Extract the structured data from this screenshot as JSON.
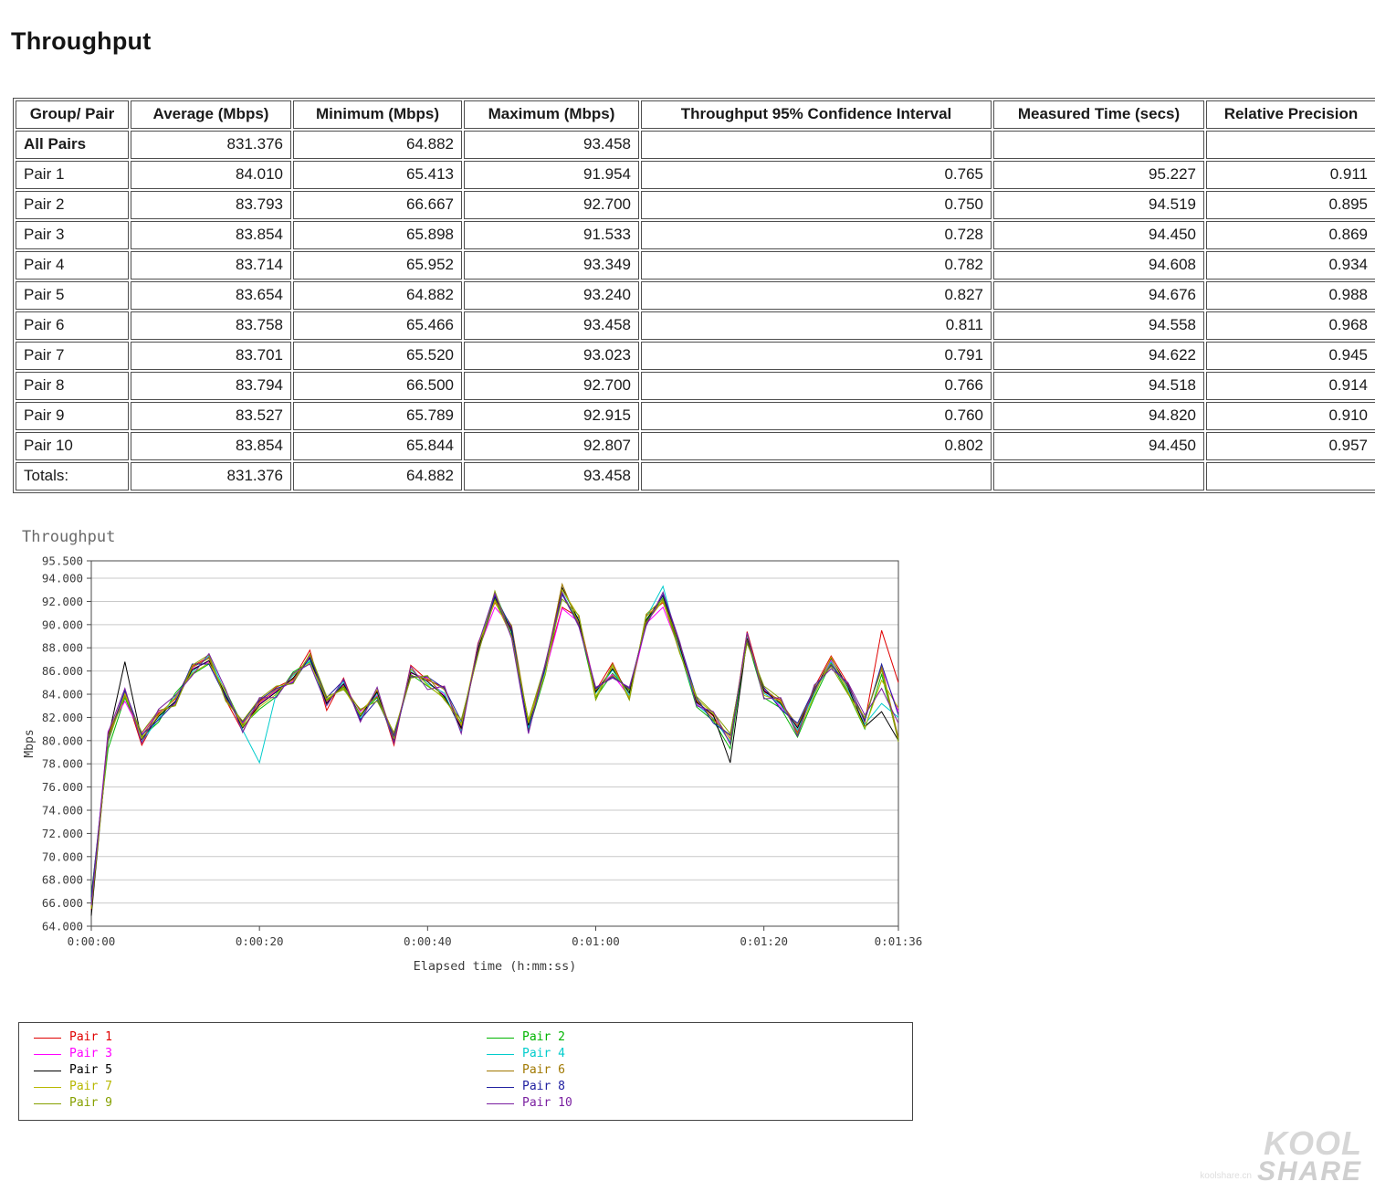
{
  "page": {
    "heading": "Throughput"
  },
  "table": {
    "columns": [
      "Group/ Pair",
      "Average (Mbps)",
      "Minimum (Mbps)",
      "Maximum (Mbps)",
      "Throughput 95% Confidence Interval",
      "Measured Time (secs)",
      "Relative Precision"
    ],
    "rows": [
      {
        "label": "All Pairs",
        "bold": true,
        "values": [
          "831.376",
          "64.882",
          "93.458",
          "",
          "",
          ""
        ]
      },
      {
        "label": "Pair 1",
        "bold": false,
        "values": [
          "84.010",
          "65.413",
          "91.954",
          "0.765",
          "95.227",
          "0.911"
        ]
      },
      {
        "label": "Pair 2",
        "bold": false,
        "values": [
          "83.793",
          "66.667",
          "92.700",
          "0.750",
          "94.519",
          "0.895"
        ]
      },
      {
        "label": "Pair 3",
        "bold": false,
        "values": [
          "83.854",
          "65.898",
          "91.533",
          "0.728",
          "94.450",
          "0.869"
        ]
      },
      {
        "label": "Pair 4",
        "bold": false,
        "values": [
          "83.714",
          "65.952",
          "93.349",
          "0.782",
          "94.608",
          "0.934"
        ]
      },
      {
        "label": "Pair 5",
        "bold": false,
        "values": [
          "83.654",
          "64.882",
          "93.240",
          "0.827",
          "94.676",
          "0.988"
        ]
      },
      {
        "label": "Pair 6",
        "bold": false,
        "values": [
          "83.758",
          "65.466",
          "93.458",
          "0.811",
          "94.558",
          "0.968"
        ]
      },
      {
        "label": "Pair 7",
        "bold": false,
        "values": [
          "83.701",
          "65.520",
          "93.023",
          "0.791",
          "94.622",
          "0.945"
        ]
      },
      {
        "label": "Pair 8",
        "bold": false,
        "values": [
          "83.794",
          "66.500",
          "92.700",
          "0.766",
          "94.518",
          "0.914"
        ]
      },
      {
        "label": "Pair 9",
        "bold": false,
        "values": [
          "83.527",
          "65.789",
          "92.915",
          "0.760",
          "94.820",
          "0.910"
        ]
      },
      {
        "label": "Pair 10",
        "bold": false,
        "values": [
          "83.854",
          "65.844",
          "92.807",
          "0.802",
          "94.450",
          "0.957"
        ]
      },
      {
        "label": "Totals:",
        "bold": false,
        "values": [
          "831.376",
          "64.882",
          "93.458",
          "",
          "",
          ""
        ]
      }
    ]
  },
  "chart_data": {
    "type": "line",
    "title": "Throughput",
    "xlabel": "Elapsed time (h:mm:ss)",
    "ylabel": "Mbps",
    "ylim": [
      64.0,
      95.5
    ],
    "yticks": [
      64,
      66,
      68,
      70,
      72,
      74,
      76,
      78,
      80,
      82,
      84,
      86,
      88,
      90,
      92,
      94,
      95.5
    ],
    "xlim": [
      0,
      96
    ],
    "xticks": [
      {
        "sec": 0,
        "label": "0:00:00"
      },
      {
        "sec": 20,
        "label": "0:00:20"
      },
      {
        "sec": 40,
        "label": "0:00:40"
      },
      {
        "sec": 60,
        "label": "0:01:00"
      },
      {
        "sec": 80,
        "label": "0:01:20"
      },
      {
        "sec": 96,
        "label": "0:01:36"
      }
    ],
    "grid": "horizontal",
    "legend_position": "bottom",
    "x_seconds": [
      0,
      2,
      4,
      6,
      8,
      10,
      12,
      14,
      16,
      18,
      20,
      22,
      24,
      26,
      28,
      30,
      32,
      34,
      36,
      38,
      40,
      42,
      44,
      46,
      48,
      50,
      52,
      54,
      56,
      58,
      60,
      62,
      64,
      66,
      68,
      70,
      72,
      74,
      76,
      78,
      80,
      82,
      84,
      86,
      88,
      90,
      92,
      94,
      96
    ],
    "series": [
      {
        "name": "Pair 1",
        "color": "#e00000",
        "values": [
          65.4,
          80.4,
          84.2,
          79.6,
          82.3,
          83.6,
          86.4,
          87.2,
          83.5,
          80.8,
          83.4,
          84.6,
          85.3,
          87.8,
          82.6,
          85.4,
          81.7,
          84.3,
          79.6,
          86.5,
          85.2,
          84.6,
          80.9,
          88.4,
          91.9,
          89.6,
          81.4,
          86.2,
          91.5,
          90.6,
          84.3,
          86.7,
          83.6,
          90.8,
          91.9,
          88.2,
          83.4,
          82.1,
          79.8,
          89.4,
          84.2,
          83.5,
          80.7,
          84.6,
          87.3,
          84.9,
          81.6,
          89.5,
          85.0
        ]
      },
      {
        "name": "Pair 2",
        "color": "#00b400",
        "values": [
          66.7,
          79.3,
          83.7,
          80.3,
          81.6,
          84.1,
          85.7,
          86.6,
          84.3,
          81.3,
          82.7,
          83.8,
          85.9,
          86.8,
          83.5,
          84.6,
          82.3,
          83.7,
          80.3,
          85.7,
          84.7,
          83.7,
          81.5,
          87.7,
          92.2,
          89.1,
          80.9,
          85.7,
          92.7,
          90.1,
          83.7,
          85.8,
          84.3,
          90.3,
          92.3,
          87.7,
          82.9,
          81.7,
          79.3,
          88.7,
          83.7,
          82.8,
          80.3,
          83.7,
          86.7,
          84.1,
          81.0,
          85.7,
          80.1
        ]
      },
      {
        "name": "Pair 3",
        "color": "#ff00ff",
        "values": [
          65.9,
          80.8,
          83.4,
          80.6,
          82.5,
          83.2,
          86.2,
          86.8,
          83.8,
          81.5,
          83.2,
          84.3,
          85.1,
          87.3,
          83.3,
          84.8,
          82.5,
          83.9,
          80.5,
          85.8,
          85.4,
          83.9,
          81.2,
          87.8,
          91.5,
          89.8,
          81.2,
          85.9,
          91.4,
          90.2,
          84.5,
          85.7,
          83.8,
          90.1,
          91.5,
          87.8,
          83.2,
          81.9,
          80.2,
          88.9,
          84.4,
          82.9,
          81.2,
          84.2,
          86.9,
          84.3,
          81.8,
          86.3,
          82.5
        ]
      },
      {
        "name": "Pair 4",
        "color": "#00cccc",
        "values": [
          66.0,
          79.8,
          84.4,
          79.9,
          81.9,
          83.8,
          85.9,
          87.3,
          84.1,
          80.9,
          78.1,
          84.1,
          85.6,
          86.9,
          83.1,
          85.1,
          81.9,
          84.1,
          79.9,
          86.1,
          84.9,
          84.1,
          80.8,
          88.1,
          92.8,
          89.3,
          81.1,
          86.1,
          93.0,
          90.4,
          84.1,
          86.1,
          83.9,
          90.6,
          93.3,
          87.9,
          83.1,
          81.9,
          79.9,
          89.1,
          84.1,
          83.1,
          80.9,
          84.1,
          86.8,
          84.4,
          81.4,
          83.2,
          82.0
        ]
      },
      {
        "name": "Pair 5",
        "color": "#000000",
        "values": [
          64.9,
          80.2,
          86.8,
          80.1,
          82.1,
          83.4,
          86.1,
          86.9,
          83.9,
          81.1,
          83.1,
          84.2,
          85.4,
          87.1,
          83.2,
          84.9,
          82.1,
          84.2,
          80.1,
          85.9,
          85.1,
          83.8,
          81.1,
          87.9,
          92.4,
          89.4,
          81.3,
          86.3,
          93.2,
          90.3,
          84.2,
          86.2,
          84.1,
          90.4,
          92.5,
          88.1,
          83.3,
          82.2,
          78.1,
          88.8,
          84.3,
          83.2,
          81.1,
          84.3,
          87.1,
          84.6,
          81.2,
          82.5,
          80.0
        ]
      },
      {
        "name": "Pair 6",
        "color": "#a07800",
        "values": [
          65.5,
          80.6,
          83.9,
          80.4,
          82.4,
          83.1,
          86.3,
          87.1,
          83.6,
          81.4,
          83.3,
          84.4,
          85.2,
          87.4,
          83.4,
          84.7,
          82.6,
          83.8,
          80.6,
          85.6,
          85.3,
          84.4,
          81.3,
          87.6,
          92.1,
          89.9,
          81.5,
          86.4,
          93.5,
          90.0,
          84.4,
          85.6,
          84.4,
          90.2,
          92.1,
          88.3,
          83.5,
          81.8,
          80.4,
          88.6,
          84.5,
          83.3,
          81.3,
          84.4,
          86.6,
          84.7,
          81.9,
          86.4,
          80.2
        ]
      },
      {
        "name": "Pair 7",
        "color": "#b8b800",
        "values": [
          65.5,
          79.9,
          84.1,
          80.2,
          82.2,
          83.7,
          85.8,
          86.7,
          84.2,
          81.2,
          82.9,
          84.0,
          85.7,
          86.7,
          83.6,
          84.5,
          82.2,
          84.4,
          80.2,
          86.2,
          84.8,
          83.6,
          81.4,
          88.2,
          92.0,
          89.0,
          81.6,
          85.8,
          93.0,
          90.7,
          83.8,
          86.4,
          83.7,
          90.7,
          92.0,
          87.6,
          83.6,
          82.3,
          80.1,
          89.2,
          83.9,
          83.4,
          80.6,
          83.9,
          87.2,
          84.2,
          81.1,
          85.2,
          82.8
        ]
      },
      {
        "name": "Pair 8",
        "color": "#2020a0",
        "values": [
          66.5,
          80.1,
          84.3,
          80.5,
          81.8,
          83.3,
          86.6,
          86.6,
          83.7,
          81.6,
          83.5,
          84.5,
          85.0,
          87.2,
          83.7,
          85.2,
          81.8,
          83.5,
          80.4,
          85.5,
          85.5,
          84.5,
          81.7,
          87.5,
          92.5,
          89.7,
          80.7,
          86.5,
          92.6,
          89.9,
          84.5,
          85.5,
          84.5,
          90.0,
          92.6,
          88.4,
          83.7,
          81.5,
          80.5,
          88.5,
          84.6,
          82.7,
          81.5,
          84.5,
          86.5,
          84.8,
          81.7,
          86.6,
          82.2
        ]
      },
      {
        "name": "Pair 9",
        "color": "#86a000",
        "values": [
          65.8,
          80.3,
          83.8,
          80.7,
          82.6,
          83.0,
          86.5,
          87.4,
          83.4,
          81.7,
          83.6,
          84.7,
          84.9,
          87.5,
          83.8,
          84.4,
          82.7,
          83.4,
          80.7,
          85.4,
          85.6,
          83.5,
          81.8,
          87.4,
          92.9,
          88.9,
          81.8,
          86.6,
          92.2,
          90.8,
          83.5,
          86.6,
          83.5,
          90.9,
          92.2,
          87.5,
          83.8,
          82.4,
          80.6,
          88.4,
          84.7,
          83.6,
          80.5,
          84.7,
          86.4,
          84.0,
          82.0,
          86.1,
          79.9
        ]
      },
      {
        "name": "Pair 10",
        "color": "#7a1fa0",
        "values": [
          65.8,
          80.7,
          84.5,
          79.8,
          82.7,
          83.9,
          85.6,
          87.5,
          84.4,
          80.7,
          83.7,
          83.7,
          85.8,
          86.6,
          83.0,
          85.3,
          81.6,
          84.6,
          79.8,
          86.4,
          84.4,
          84.7,
          80.6,
          88.3,
          92.7,
          88.8,
          80.6,
          86.7,
          92.8,
          89.8,
          84.6,
          85.4,
          84.6,
          89.9,
          92.8,
          88.5,
          83.0,
          82.5,
          79.7,
          89.3,
          83.6,
          83.7,
          80.4,
          84.8,
          86.2,
          85.0,
          82.2,
          84.5,
          81.5
        ]
      }
    ]
  },
  "watermark": {
    "line1": "KOOL",
    "line2": "SHARE",
    "site": "koolshare.cn"
  }
}
